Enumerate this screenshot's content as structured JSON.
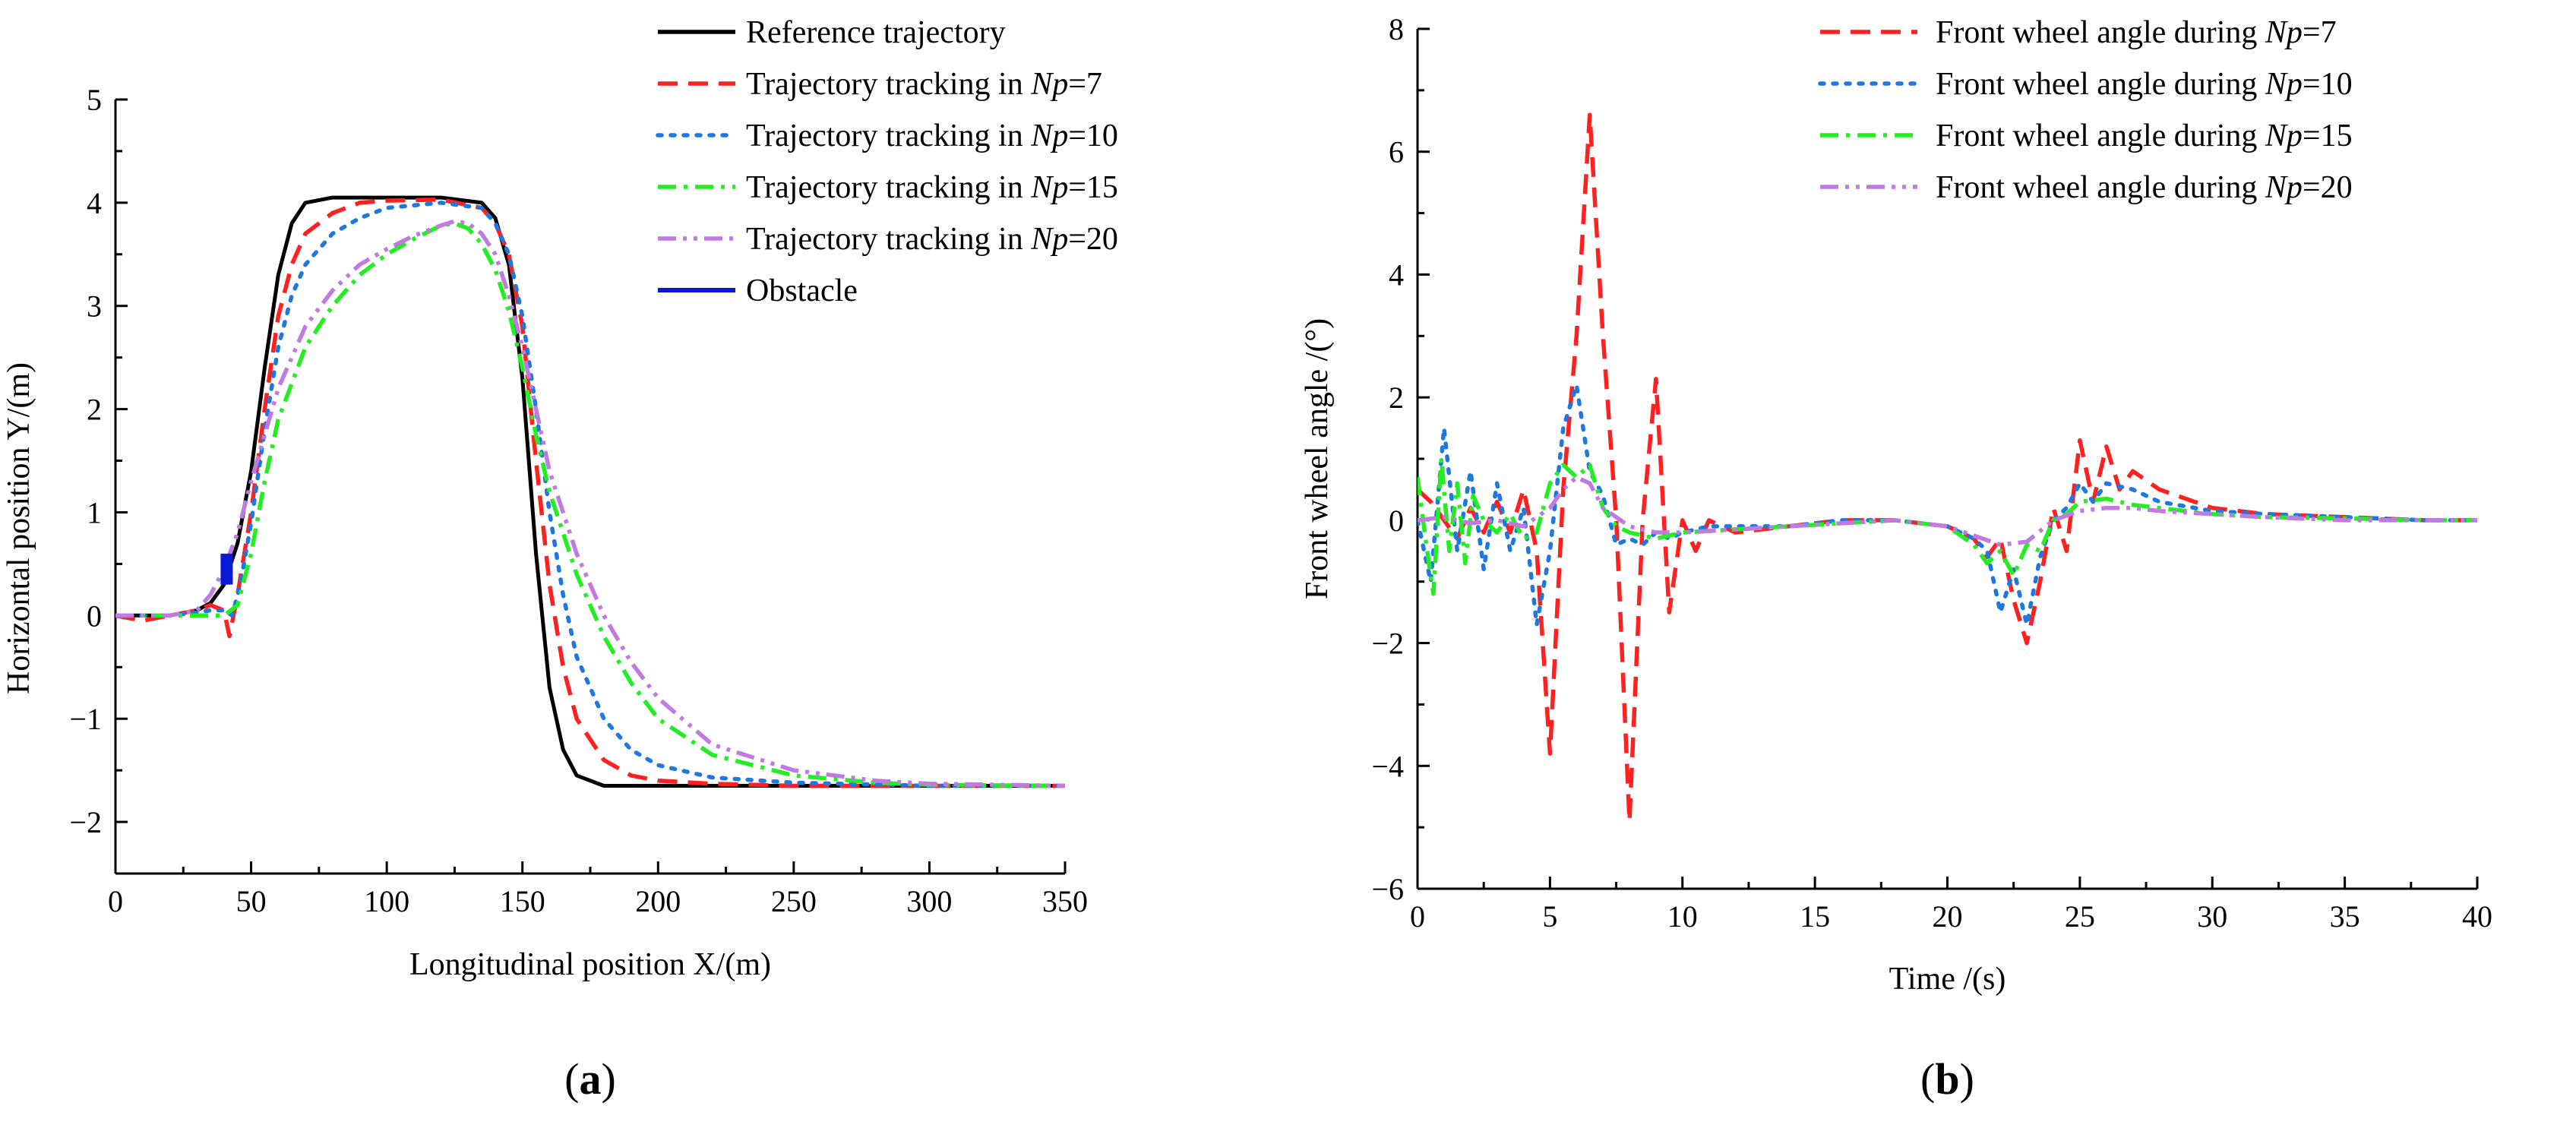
{
  "chart_data": [
    {
      "type": "line",
      "panel_label": "a",
      "xlabel": "Longitudinal position X/(m)",
      "ylabel": "Horizontal position Y/(m)",
      "xlim": [
        0,
        350
      ],
      "ylim": [
        -2.5,
        5
      ],
      "xticks": [
        0,
        50,
        100,
        150,
        200,
        250,
        300,
        350
      ],
      "yticks": [
        -2,
        -1,
        0,
        1,
        2,
        3,
        4,
        5
      ],
      "legend_position": "top-right",
      "series": [
        {
          "name": "Reference trajectory",
          "name_parts": [
            "Reference trajectory",
            "",
            ""
          ],
          "color": "#000000",
          "style": "solid",
          "x": [
            0,
            20,
            30,
            35,
            40,
            45,
            50,
            55,
            60,
            65,
            70,
            80,
            90,
            100,
            120,
            135,
            140,
            145,
            150,
            155,
            160,
            165,
            170,
            180,
            190,
            200,
            250,
            300,
            350
          ],
          "y": [
            0,
            0,
            0.05,
            0.12,
            0.3,
            0.7,
            1.4,
            2.4,
            3.3,
            3.8,
            4.0,
            4.05,
            4.05,
            4.05,
            4.05,
            4.0,
            3.85,
            3.4,
            2.3,
            0.6,
            -0.7,
            -1.3,
            -1.55,
            -1.65,
            -1.65,
            -1.65,
            -1.65,
            -1.65,
            -1.65
          ]
        },
        {
          "name": "Trajectory tracking in Np=7",
          "name_parts": [
            "Trajectory tracking in ",
            "Np",
            "=7"
          ],
          "color": "#ff2020",
          "style": "dash",
          "x": [
            0,
            10,
            20,
            30,
            35,
            40,
            42,
            45,
            50,
            55,
            60,
            65,
            70,
            80,
            90,
            100,
            120,
            135,
            140,
            145,
            150,
            155,
            160,
            165,
            170,
            180,
            190,
            200,
            220,
            250,
            300,
            350
          ],
          "y": [
            0,
            -0.05,
            0,
            0.05,
            0.1,
            0.05,
            -0.2,
            0.2,
            1.0,
            2.0,
            2.9,
            3.4,
            3.7,
            3.9,
            4.0,
            4.02,
            4.03,
            3.95,
            3.8,
            3.5,
            2.8,
            1.5,
            0.3,
            -0.5,
            -1.0,
            -1.4,
            -1.55,
            -1.6,
            -1.63,
            -1.65,
            -1.65,
            -1.65
          ]
        },
        {
          "name": "Trajectory tracking in Np=10",
          "name_parts": [
            "Trajectory tracking in ",
            "Np",
            "=10"
          ],
          "color": "#1f77e0",
          "style": "dot",
          "x": [
            0,
            20,
            30,
            35,
            40,
            43,
            46,
            50,
            55,
            60,
            65,
            70,
            80,
            90,
            100,
            120,
            135,
            140,
            145,
            150,
            155,
            160,
            165,
            170,
            180,
            190,
            200,
            220,
            250,
            300,
            350
          ],
          "y": [
            0,
            0,
            0.03,
            0.05,
            0.05,
            0.0,
            0.3,
            0.9,
            1.8,
            2.6,
            3.1,
            3.4,
            3.7,
            3.85,
            3.95,
            4.0,
            3.95,
            3.8,
            3.5,
            2.9,
            2.0,
            1.0,
            0.2,
            -0.4,
            -1.0,
            -1.3,
            -1.45,
            -1.57,
            -1.62,
            -1.65,
            -1.65
          ]
        },
        {
          "name": "Trajectory tracking in Np=15",
          "name_parts": [
            "Trajectory tracking in ",
            "Np",
            "=15"
          ],
          "color": "#22ee22",
          "style": "dashdot",
          "x": [
            0,
            20,
            30,
            40,
            45,
            50,
            55,
            60,
            70,
            80,
            90,
            100,
            110,
            120,
            125,
            130,
            135,
            140,
            145,
            150,
            155,
            160,
            170,
            180,
            190,
            200,
            220,
            250,
            280,
            300,
            350
          ],
          "y": [
            0,
            0,
            0,
            0,
            0.1,
            0.6,
            1.3,
            1.9,
            2.6,
            3.0,
            3.3,
            3.5,
            3.65,
            3.78,
            3.8,
            3.75,
            3.6,
            3.35,
            2.95,
            2.4,
            1.75,
            1.2,
            0.4,
            -0.2,
            -0.65,
            -1.0,
            -1.35,
            -1.55,
            -1.62,
            -1.64,
            -1.65
          ]
        },
        {
          "name": "Trajectory tracking in Np=20",
          "name_parts": [
            "Trajectory tracking in ",
            "Np",
            "=20"
          ],
          "color": "#c07ae0",
          "style": "dashdotdot",
          "x": [
            0,
            20,
            30,
            35,
            40,
            45,
            50,
            55,
            60,
            70,
            80,
            90,
            100,
            110,
            120,
            125,
            130,
            135,
            140,
            145,
            150,
            155,
            160,
            170,
            180,
            190,
            200,
            220,
            250,
            280,
            300,
            350
          ],
          "y": [
            0,
            0,
            0.05,
            0.2,
            0.45,
            0.8,
            1.3,
            1.75,
            2.2,
            2.8,
            3.15,
            3.4,
            3.55,
            3.68,
            3.78,
            3.82,
            3.8,
            3.7,
            3.5,
            3.1,
            2.6,
            2.0,
            1.4,
            0.6,
            0.0,
            -0.45,
            -0.8,
            -1.25,
            -1.5,
            -1.6,
            -1.63,
            -1.65
          ]
        },
        {
          "name": "Obstacle",
          "name_parts": [
            "Obstacle",
            "",
            ""
          ],
          "color": "#0a18d8",
          "style": "bar",
          "x": [
            41,
            41
          ],
          "y": [
            0.3,
            0.6
          ]
        }
      ]
    },
    {
      "type": "line",
      "panel_label": "b",
      "xlabel": "Time /(s)",
      "ylabel": "Front wheel angle /(°)",
      "xlim": [
        0,
        40
      ],
      "ylim": [
        -6,
        8
      ],
      "xticks": [
        0,
        5,
        10,
        15,
        20,
        25,
        30,
        35,
        40
      ],
      "yticks": [
        -6,
        -4,
        -2,
        0,
        2,
        4,
        6,
        8
      ],
      "legend_position": "top-right",
      "series": [
        {
          "name": "Front wheel angle during Np=7",
          "name_parts": [
            "Front wheel angle during ",
            "Np",
            "=7"
          ],
          "color": "#ff2020",
          "style": "dash",
          "x": [
            0,
            0.5,
            1,
            1.5,
            2,
            2.5,
            3,
            3.5,
            4,
            4.5,
            5,
            5.5,
            6,
            6.5,
            7,
            7.5,
            8,
            8.5,
            9,
            9.5,
            10,
            10.5,
            11,
            12,
            14,
            16,
            18,
            20,
            21,
            21.5,
            22,
            22.5,
            23,
            23.5,
            24,
            24.5,
            25,
            25.5,
            26,
            26.5,
            27,
            28,
            30,
            32,
            35,
            38,
            40
          ],
          "y": [
            0.5,
            0.3,
            0.0,
            -0.3,
            0.2,
            -0.2,
            0.3,
            -0.2,
            0.5,
            -0.5,
            -3.8,
            0.5,
            3.0,
            6.6,
            3.0,
            0.0,
            -4.9,
            0.0,
            2.3,
            -1.5,
            0.0,
            -0.5,
            0.0,
            -0.2,
            -0.1,
            0.0,
            0.0,
            -0.1,
            -0.3,
            -0.6,
            -0.3,
            -1.3,
            -2.0,
            -1.0,
            0.2,
            -0.5,
            1.3,
            0.3,
            1.2,
            0.5,
            0.8,
            0.5,
            0.2,
            0.1,
            0.05,
            0.0,
            0.0
          ]
        },
        {
          "name": "Front wheel angle during Np=10",
          "name_parts": [
            "Front wheel angle during ",
            "Np",
            "=10"
          ],
          "color": "#1f77e0",
          "style": "dot",
          "x": [
            0,
            0.5,
            1,
            1.5,
            2,
            2.5,
            3,
            3.5,
            4,
            4.5,
            5,
            5.5,
            6,
            6.5,
            7,
            7.5,
            8,
            8.5,
            9,
            9.5,
            10,
            11,
            12,
            14,
            16,
            18,
            20,
            21,
            21.5,
            22,
            22.5,
            23,
            23.5,
            24,
            24.5,
            25,
            25.5,
            26,
            27,
            28,
            30,
            32,
            35,
            38,
            40
          ],
          "y": [
            0.0,
            -1.0,
            1.5,
            -0.5,
            0.8,
            -0.8,
            0.6,
            -0.5,
            0.2,
            -1.7,
            -0.5,
            1.5,
            2.2,
            0.8,
            0.4,
            -0.4,
            -0.3,
            -0.4,
            -0.2,
            -0.3,
            -0.2,
            -0.1,
            -0.1,
            -0.1,
            0.0,
            0.0,
            -0.1,
            -0.3,
            -0.5,
            -1.5,
            -0.8,
            -1.7,
            -0.6,
            0.0,
            0.2,
            0.6,
            0.3,
            0.6,
            0.5,
            0.3,
            0.15,
            0.1,
            0.05,
            0.0,
            0.0
          ]
        },
        {
          "name": "Front wheel angle during Np=15",
          "name_parts": [
            "Front wheel angle during ",
            "Np",
            "=15"
          ],
          "color": "#22ee22",
          "style": "dashdot",
          "x": [
            0,
            0.3,
            0.6,
            0.9,
            1.2,
            1.5,
            1.8,
            2.1,
            2.5,
            3,
            3.5,
            4,
            4.5,
            5,
            5.5,
            6,
            6.5,
            7,
            7.5,
            8,
            9,
            10,
            12,
            14,
            16,
            18,
            20,
            21,
            21.5,
            22,
            22.5,
            23,
            23.5,
            24,
            24.5,
            25,
            26,
            27,
            28,
            30,
            32,
            35,
            38,
            40
          ],
          "y": [
            0.7,
            -0.3,
            -1.2,
            1.0,
            -0.5,
            0.6,
            -0.7,
            0.4,
            0.0,
            -0.2,
            0.1,
            -0.3,
            -0.2,
            0.6,
            0.9,
            0.7,
            0.9,
            0.2,
            -0.1,
            -0.2,
            -0.3,
            -0.2,
            -0.15,
            -0.1,
            -0.05,
            0.0,
            -0.1,
            -0.4,
            -0.7,
            -0.5,
            -0.9,
            -0.4,
            -0.5,
            0.0,
            0.1,
            0.3,
            0.35,
            0.25,
            0.2,
            0.1,
            0.05,
            0.03,
            0.0,
            0.0
          ]
        },
        {
          "name": "Front wheel angle during Np=20",
          "name_parts": [
            "Front wheel angle during ",
            "Np",
            "=20"
          ],
          "color": "#c07ae0",
          "style": "dashdotdot",
          "x": [
            0,
            1,
            2,
            3,
            4,
            5,
            5.5,
            6,
            6.5,
            7,
            8,
            9,
            10,
            12,
            14,
            16,
            18,
            20,
            21,
            22,
            23,
            24,
            25,
            26,
            27,
            28,
            30,
            32,
            35,
            38,
            40
          ],
          "y": [
            0.0,
            0.05,
            -0.05,
            0.0,
            -0.1,
            0.2,
            0.5,
            0.7,
            0.6,
            0.2,
            -0.1,
            -0.2,
            -0.2,
            -0.15,
            -0.1,
            -0.05,
            0.0,
            -0.1,
            -0.25,
            -0.4,
            -0.35,
            0.0,
            0.15,
            0.2,
            0.2,
            0.15,
            0.1,
            0.05,
            0.0,
            0.0,
            0.0
          ]
        }
      ]
    }
  ]
}
